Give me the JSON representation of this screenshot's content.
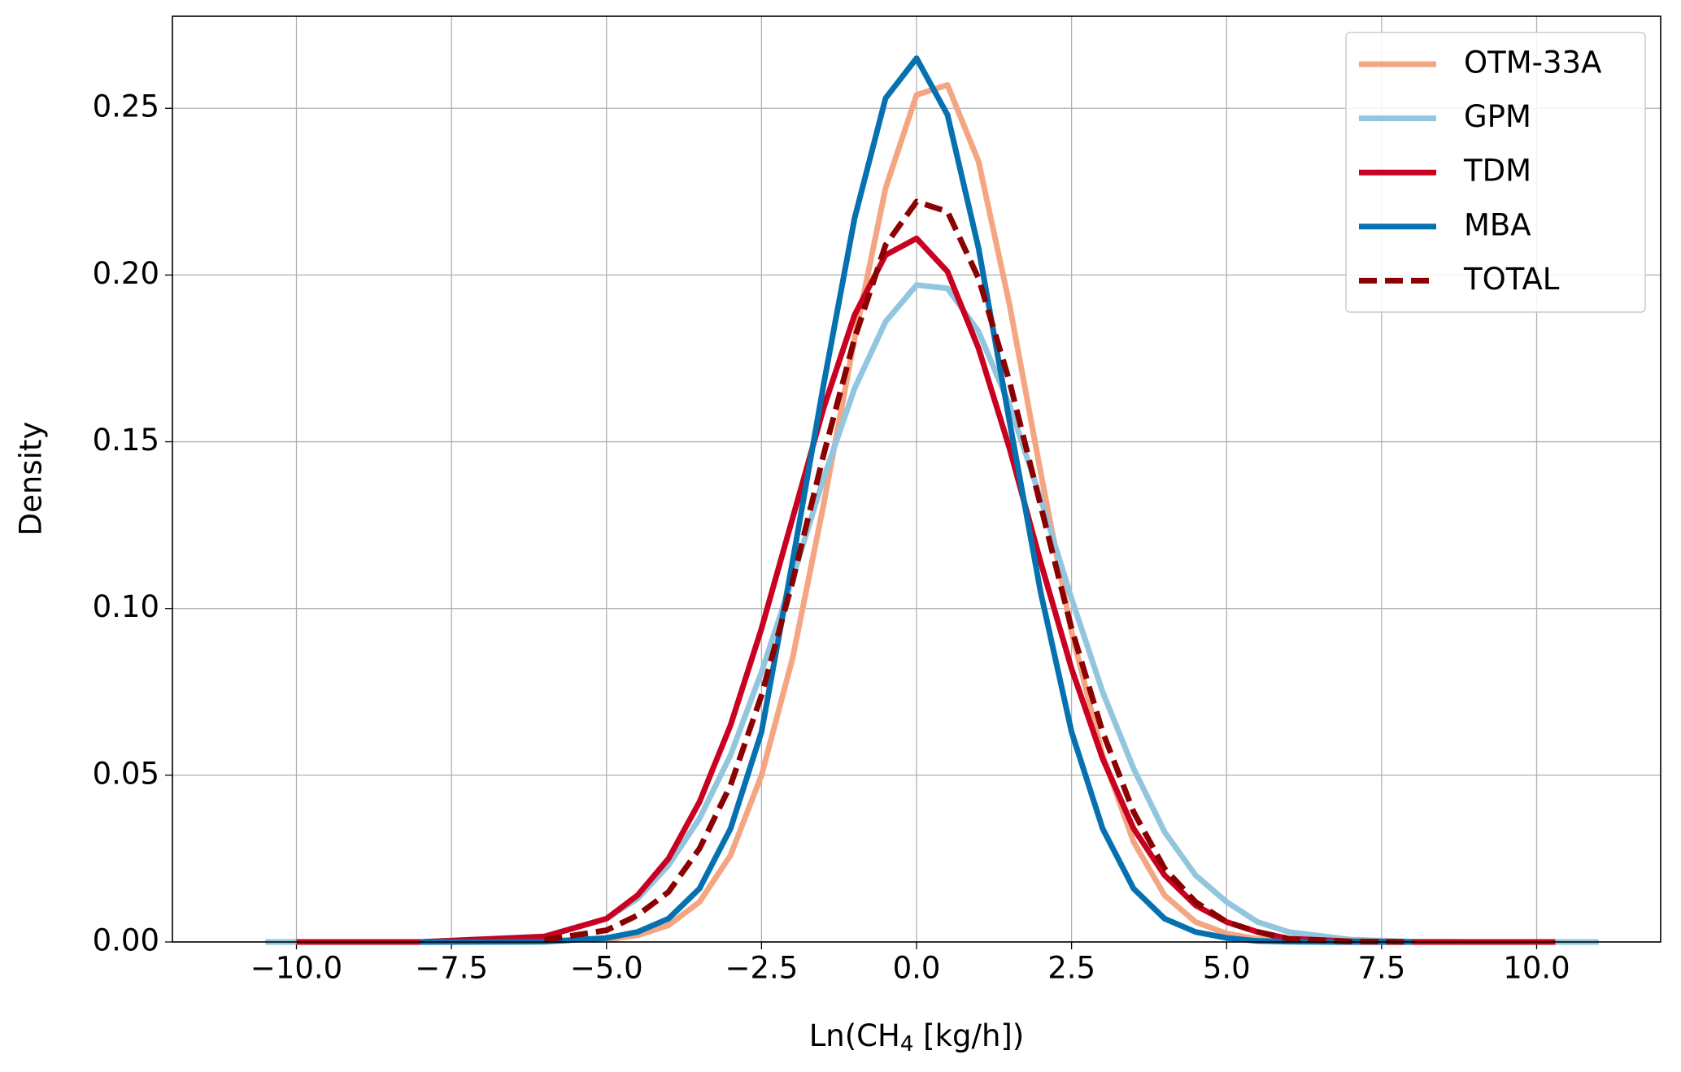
{
  "chart_data": {
    "type": "line",
    "ylabel": "Density",
    "xlabel": {
      "text": "Ln(CH",
      "sub": "4",
      "after": " [kg/h])"
    },
    "x": [
      -10.5,
      -10,
      -8,
      -6,
      -5,
      -4.5,
      -4,
      -3.5,
      -3,
      -2.5,
      -2,
      -1.5,
      -1,
      -0.5,
      0,
      0.5,
      1,
      1.5,
      2,
      2.5,
      3,
      3.5,
      4,
      4.5,
      5,
      5.5,
      6,
      7,
      8,
      9,
      10.3,
      11
    ],
    "series": [
      {
        "name": "OTM-33A",
        "color": "#f4a582",
        "values": [
          null,
          null,
          null,
          null,
          0.0007,
          0.002,
          0.005,
          0.012,
          0.026,
          0.05,
          0.085,
          0.131,
          0.181,
          0.226,
          0.254,
          0.257,
          0.234,
          0.191,
          0.141,
          0.093,
          0.056,
          0.03,
          0.014,
          0.006,
          0.0025,
          0.0009,
          0.0003,
          0,
          0,
          null,
          null,
          null
        ]
      },
      {
        "name": "GPM",
        "color": "#92c5de",
        "values": [
          0,
          0,
          0,
          0.0017,
          0.007,
          0.013,
          0.023,
          0.037,
          0.056,
          0.081,
          0.109,
          0.139,
          0.166,
          0.186,
          0.197,
          0.196,
          0.183,
          0.161,
          0.133,
          0.103,
          0.075,
          0.052,
          0.033,
          0.02,
          0.012,
          0.006,
          0.003,
          0.0007,
          0.0001,
          0,
          0,
          0
        ]
      },
      {
        "name": "TDM",
        "color": "#ca0020",
        "values": [
          null,
          0,
          0,
          0.0016,
          0.007,
          0.014,
          0.025,
          0.042,
          0.065,
          0.094,
          0.127,
          0.16,
          0.188,
          0.206,
          0.211,
          0.201,
          0.178,
          0.148,
          0.114,
          0.082,
          0.055,
          0.034,
          0.02,
          0.011,
          0.006,
          0.003,
          0.001,
          0.0002,
          0,
          0,
          0,
          null
        ]
      },
      {
        "name": "MBA",
        "color": "#0571b0",
        "values": [
          null,
          null,
          0,
          0.0001,
          0.0012,
          0.003,
          0.007,
          0.016,
          0.034,
          0.063,
          0.114,
          0.167,
          0.217,
          0.253,
          0.265,
          0.248,
          0.208,
          0.156,
          0.105,
          0.063,
          0.034,
          0.016,
          0.007,
          0.003,
          0.0012,
          0.0003,
          0.0001,
          0,
          0,
          null,
          null,
          null
        ]
      },
      {
        "name": "TOTAL",
        "color": "#8b0000",
        "dashed": true,
        "values": [
          null,
          null,
          null,
          0.0006,
          0.0035,
          0.008,
          0.015,
          0.028,
          0.047,
          0.074,
          0.108,
          0.146,
          0.181,
          0.209,
          0.222,
          0.219,
          0.199,
          0.168,
          0.131,
          0.094,
          0.063,
          0.039,
          0.022,
          0.012,
          0.006,
          0.003,
          0.001,
          0.0001,
          0,
          null,
          null,
          null
        ]
      }
    ],
    "xlim": [
      -12,
      12
    ],
    "ylim": [
      0,
      0.2776
    ],
    "xticks": [
      {
        "value": -10,
        "label": "−10.0"
      },
      {
        "value": -7.5,
        "label": "−7.5"
      },
      {
        "value": -5,
        "label": "−5.0"
      },
      {
        "value": -2.5,
        "label": "−2.5"
      },
      {
        "value": 0,
        "label": "0.0"
      },
      {
        "value": 2.5,
        "label": "2.5"
      },
      {
        "value": 5,
        "label": "5.0"
      },
      {
        "value": 7.5,
        "label": "7.5"
      },
      {
        "value": 10,
        "label": "10.0"
      }
    ],
    "yticks": [
      {
        "value": 0,
        "label": "0.00"
      },
      {
        "value": 0.05,
        "label": "0.05"
      },
      {
        "value": 0.1,
        "label": "0.10"
      },
      {
        "value": 0.15,
        "label": "0.15"
      },
      {
        "value": 0.2,
        "label": "0.20"
      },
      {
        "value": 0.25,
        "label": "0.25"
      }
    ],
    "grid": true,
    "legend": "upper right"
  }
}
